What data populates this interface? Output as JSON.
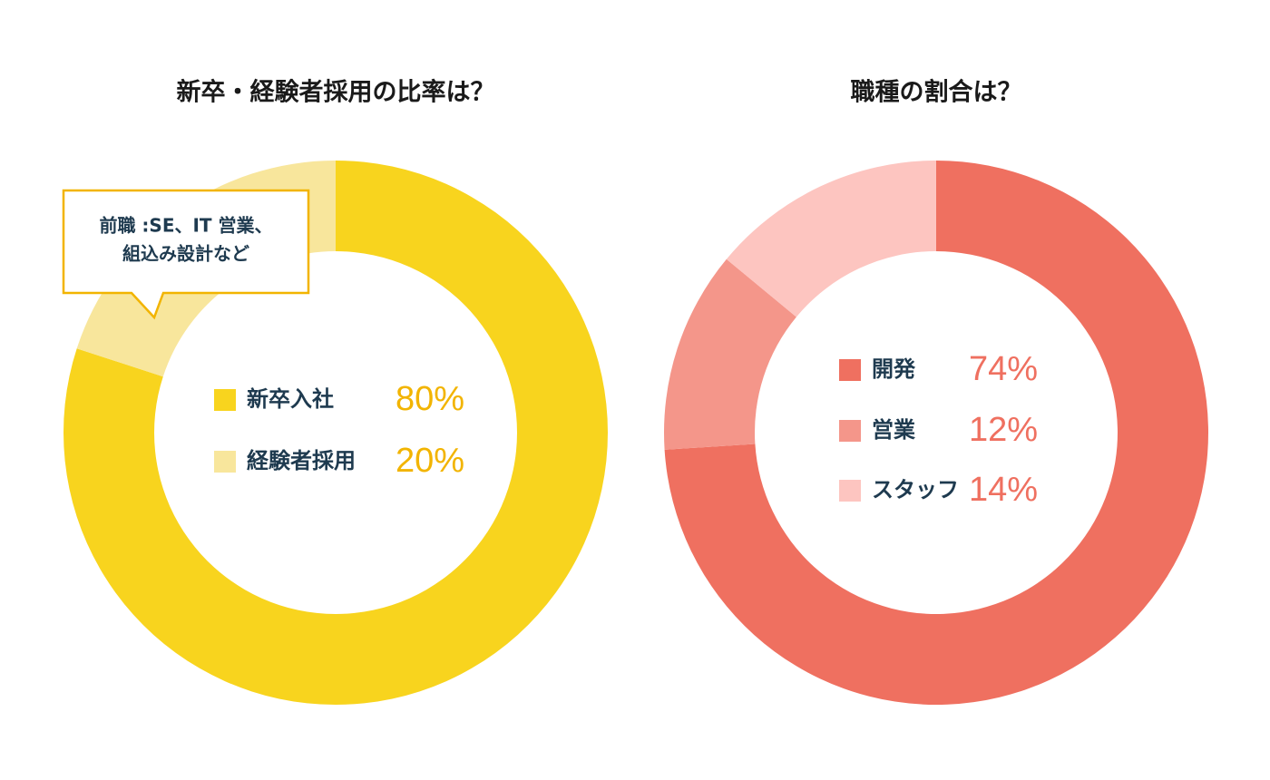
{
  "chart_data": [
    {
      "type": "donut",
      "title": "新卒・経験者採用の比率は？",
      "categories": [
        "新卒入社",
        "経験者採用"
      ],
      "values": [
        80,
        20
      ],
      "value_labels": [
        "80%",
        "20%"
      ],
      "colors": [
        "#f8d41e",
        "#f8e69c"
      ],
      "value_label_color": "#f2b400",
      "annotation": [
        "前職 :SE、IT 営業、",
        "組込み設計など"
      ]
    },
    {
      "type": "donut",
      "title": "職種の割合は？",
      "categories": [
        "開発",
        "営業",
        "スタッフ"
      ],
      "values": [
        74,
        12,
        14
      ],
      "value_labels": [
        "74%",
        "12%",
        "14%"
      ],
      "colors": [
        "#ef7060",
        "#f4968a",
        "#fdc5c0"
      ],
      "value_label_color": "#ef7060"
    }
  ]
}
